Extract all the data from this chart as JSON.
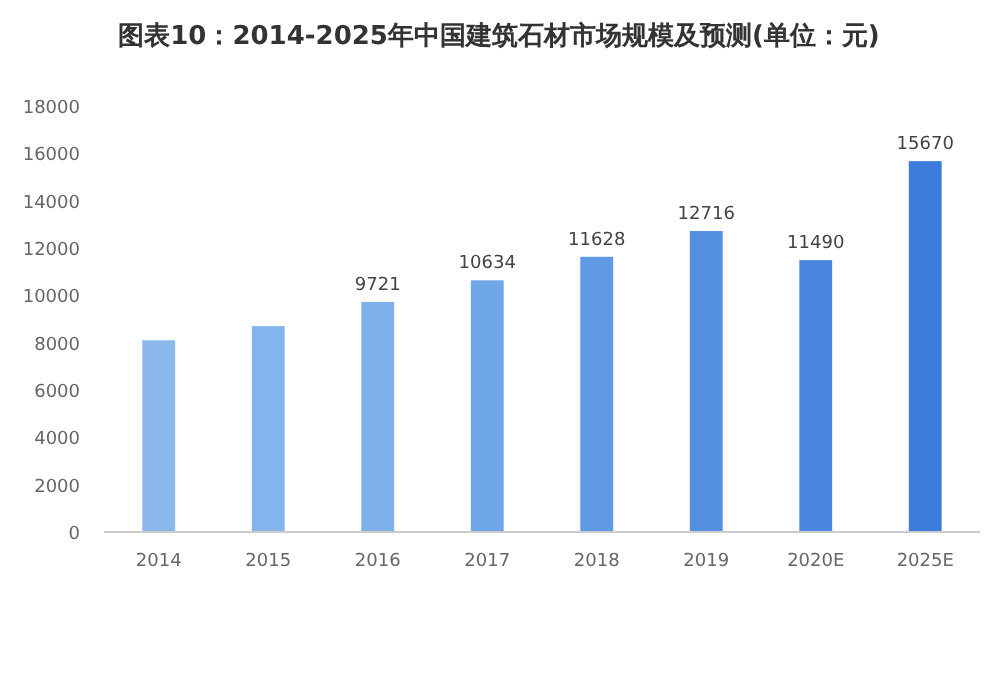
{
  "chart_data": {
    "type": "bar",
    "title": "图表10：2014-2025年中国建筑石材市场规模及预测(单位：元)",
    "categories": [
      "2014",
      "2015",
      "2016",
      "2017",
      "2018",
      "2019",
      "2020E",
      "2025E"
    ],
    "values": [
      8100,
      8700,
      9721,
      10634,
      11628,
      12716,
      11490,
      15670
    ],
    "value_labels": [
      null,
      null,
      "9721",
      "10634",
      "11628",
      "12716",
      "11490",
      "15670"
    ],
    "colors": [
      "#8ab8ec",
      "#84b4ec",
      "#7eb0ea",
      "#6fa6e8",
      "#6199e4",
      "#548fe2",
      "#4a86df",
      "#3d7cdc"
    ],
    "ylim": [
      0,
      18000
    ],
    "yticks": [
      0,
      2000,
      4000,
      6000,
      8000,
      10000,
      12000,
      14000,
      16000,
      18000
    ],
    "grid": false
  }
}
